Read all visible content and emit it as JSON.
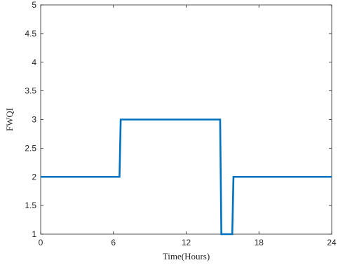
{
  "chart_data": {
    "type": "line",
    "title": "",
    "xlabel": "Time(Hours)",
    "ylabel": "FWQI",
    "xlim": [
      0,
      24
    ],
    "ylim": [
      1,
      5
    ],
    "xticks": [
      0,
      6,
      12,
      18,
      24
    ],
    "yticks": [
      1,
      1.5,
      2,
      2.5,
      3,
      3.5,
      4,
      4.5,
      5
    ],
    "xtick_labels": [
      "0",
      "6",
      "12",
      "18",
      "24"
    ],
    "ytick_labels": [
      "1",
      "1.5",
      "2",
      "2.5",
      "3",
      "3.5",
      "4",
      "4.5",
      "5"
    ],
    "grid": false,
    "legend": "none",
    "series": [
      {
        "color": "#0072BD",
        "x": [
          0,
          6.5,
          6.6,
          14.8,
          14.9,
          15.8,
          15.9,
          24
        ],
        "y": [
          2,
          2,
          3,
          3,
          1,
          1,
          2,
          2
        ]
      }
    ]
  }
}
